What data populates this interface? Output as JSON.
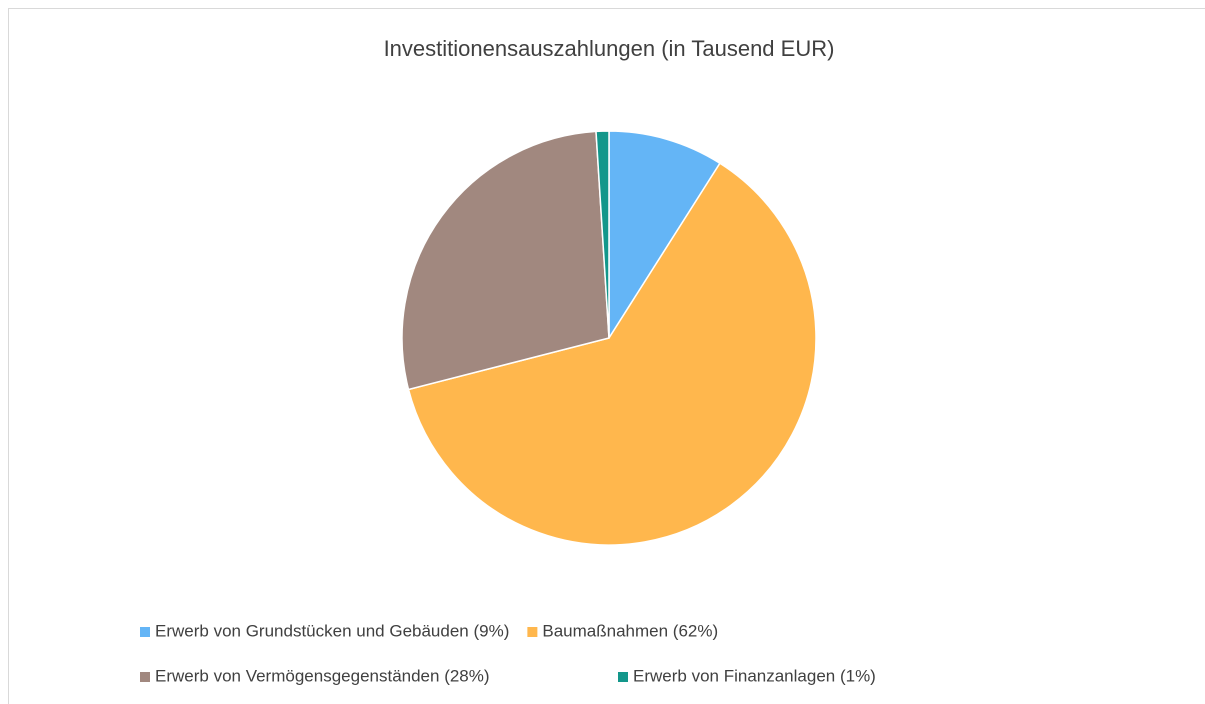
{
  "chart_data": {
    "type": "pie",
    "title": "Investitionensauszahlungen (in Tausend EUR)",
    "categories": [
      "Erwerb von Grundstücken und Gebäuden (9%)",
      "Baumaßnahmen (62%)",
      "Erwerb von Vermögensgegenständen (28%)",
      "Erwerb von Finanzanlagen (1%)"
    ],
    "values": [
      9,
      62,
      28,
      1
    ],
    "colors": [
      "#64b5f6",
      "#ffb74d",
      "#a1887f",
      "#13978b"
    ],
    "legend": "bottom"
  }
}
